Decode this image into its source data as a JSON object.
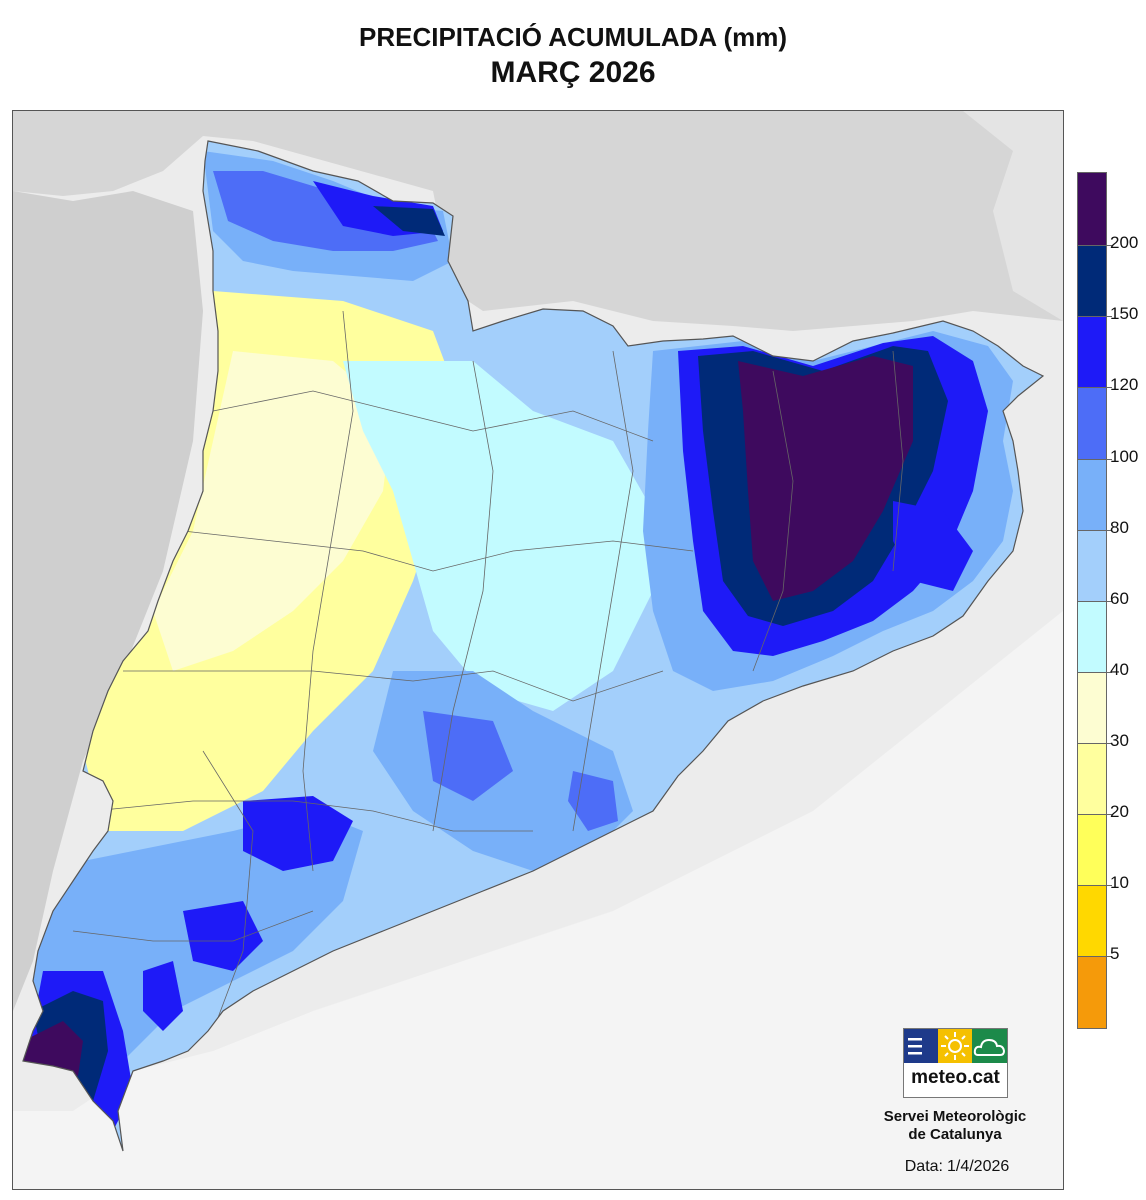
{
  "title": "PRECIPITACIÓ ACUMULADA (mm)",
  "subtitle": "MARÇ 2026",
  "legend": {
    "ticks": [
      "5",
      "10",
      "20",
      "30",
      "40",
      "60",
      "80",
      "100",
      "120",
      "150",
      "200"
    ],
    "colors": [
      "#f59a0a",
      "#ffd800",
      "#ffff5a",
      "#ffff9e",
      "#fdfdd2",
      "#c2fbff",
      "#a3cffb",
      "#78b0f9",
      "#4d6df7",
      "#1e1af7",
      "#002a78",
      "#3e0a5e"
    ]
  },
  "logo": {
    "name": "meteo.cat",
    "colors": [
      "#1e3a8a",
      "#f5c000",
      "#1c8a4a"
    ],
    "icons": [
      "menu-icon",
      "sun-icon",
      "cloud-icon"
    ]
  },
  "organization": {
    "line1": "Servei Meteorològic",
    "line2": "de Catalunya"
  },
  "date": {
    "label": "Data:",
    "value": "1/4/2026"
  }
}
